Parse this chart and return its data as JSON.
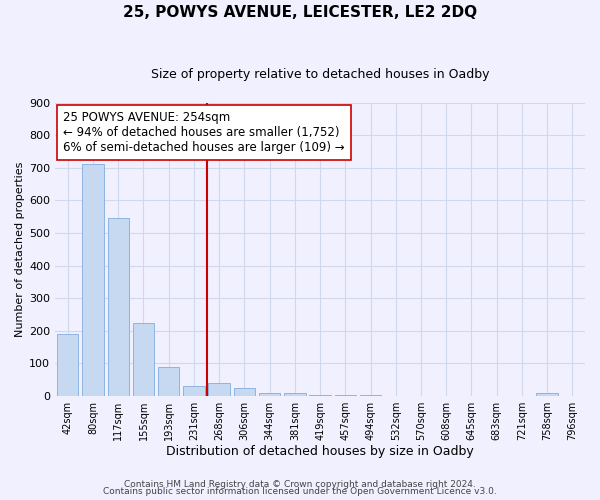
{
  "title": "25, POWYS AVENUE, LEICESTER, LE2 2DQ",
  "subtitle": "Size of property relative to detached houses in Oadby",
  "bar_labels": [
    "42sqm",
    "80sqm",
    "117sqm",
    "155sqm",
    "193sqm",
    "231sqm",
    "268sqm",
    "306sqm",
    "344sqm",
    "381sqm",
    "419sqm",
    "457sqm",
    "494sqm",
    "532sqm",
    "570sqm",
    "608sqm",
    "645sqm",
    "683sqm",
    "721sqm",
    "758sqm",
    "796sqm"
  ],
  "bar_values": [
    190,
    710,
    545,
    225,
    88,
    30,
    40,
    25,
    10,
    10,
    3,
    3,
    2,
    0,
    0,
    0,
    0,
    0,
    0,
    8,
    0
  ],
  "bar_color": "#c6d9f1",
  "bar_edge_color": "#8db4e2",
  "vline_color": "#cc0000",
  "annotation_text": "25 POWYS AVENUE: 254sqm\n← 94% of detached houses are smaller (1,752)\n6% of semi-detached houses are larger (109) →",
  "annotation_box_edge": "#cc0000",
  "annotation_fontsize": 8.5,
  "xlabel": "Distribution of detached houses by size in Oadby",
  "ylabel": "Number of detached properties",
  "ylim": [
    0,
    900
  ],
  "yticks": [
    0,
    100,
    200,
    300,
    400,
    500,
    600,
    700,
    800,
    900
  ],
  "footer1": "Contains HM Land Registry data © Crown copyright and database right 2024.",
  "footer2": "Contains public sector information licensed under the Open Government Licence v3.0.",
  "grid_color": "#d0d8ee",
  "background_color": "#f0f0ff"
}
